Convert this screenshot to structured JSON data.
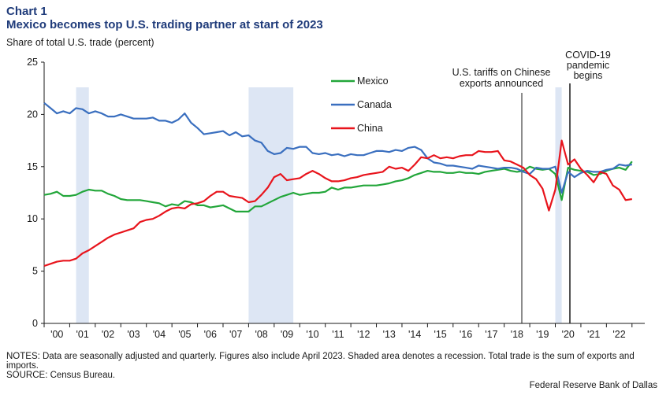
{
  "header": {
    "chart_number": "Chart 1",
    "title": "Mexico becomes top U.S. trading partner at start of 2023"
  },
  "notes": "NOTES: Data are seasonally adjusted and quarterly. Figures also include April 2023. Shaded area denotes a recession. Total trade is the sum of exports and imports.",
  "source": "SOURCE: Census Bureau.",
  "credit": "Federal Reserve Bank of Dallas",
  "colors": {
    "mexico": "#22a63a",
    "canada": "#3a6fbf",
    "china": "#e8141c",
    "recession": "#dde6f4"
  },
  "chart_data": {
    "type": "line",
    "title": "Mexico becomes top U.S. trading partner at start of 2023",
    "ylabel": "Share of total U.S. trade (percent)",
    "xlabel": "",
    "ylim": [
      0,
      25
    ],
    "yticks": [
      0,
      5,
      10,
      15,
      20,
      25
    ],
    "xlim": [
      2000.0,
      2023.5
    ],
    "xtick_labels": [
      "'00",
      "'01",
      "'02",
      "'03",
      "'04",
      "'05",
      "'06",
      "'07",
      "'08",
      "'09",
      "'10",
      "'11",
      "'12",
      "'13",
      "'14",
      "'15",
      "'16",
      "'17",
      "'18",
      "'19",
      "'20",
      "'21",
      "'22"
    ],
    "grid": false,
    "legend": "top-center",
    "recessions": [
      [
        2001.25,
        2001.75
      ],
      [
        2008.0,
        2009.75
      ],
      [
        2020.0,
        2020.25
      ]
    ],
    "annotations": [
      {
        "x": 2018.2,
        "lines": [
          "U.S. tariffs on Chinese",
          "exports announced"
        ]
      },
      {
        "x": 2020.0,
        "lines": [
          "COVID-19",
          "pandemic",
          "begins"
        ]
      }
    ],
    "series": [
      {
        "name": "Mexico",
        "points": [
          [
            2000.0,
            12.3
          ],
          [
            2000.25,
            12.4
          ],
          [
            2000.5,
            12.6
          ],
          [
            2000.75,
            12.2
          ],
          [
            2001.0,
            12.2
          ],
          [
            2001.25,
            12.3
          ],
          [
            2001.5,
            12.6
          ],
          [
            2001.75,
            12.8
          ],
          [
            2002.0,
            12.7
          ],
          [
            2002.25,
            12.7
          ],
          [
            2002.5,
            12.4
          ],
          [
            2002.75,
            12.2
          ],
          [
            2003.0,
            11.9
          ],
          [
            2003.25,
            11.8
          ],
          [
            2003.5,
            11.8
          ],
          [
            2003.75,
            11.8
          ],
          [
            2004.0,
            11.7
          ],
          [
            2004.25,
            11.6
          ],
          [
            2004.5,
            11.5
          ],
          [
            2004.75,
            11.2
          ],
          [
            2005.0,
            11.4
          ],
          [
            2005.25,
            11.3
          ],
          [
            2005.5,
            11.7
          ],
          [
            2005.75,
            11.6
          ],
          [
            2006.0,
            11.3
          ],
          [
            2006.25,
            11.3
          ],
          [
            2006.5,
            11.1
          ],
          [
            2006.75,
            11.2
          ],
          [
            2007.0,
            11.3
          ],
          [
            2007.25,
            11.0
          ],
          [
            2007.5,
            10.7
          ],
          [
            2007.75,
            10.7
          ],
          [
            2008.0,
            10.7
          ],
          [
            2008.25,
            11.2
          ],
          [
            2008.5,
            11.2
          ],
          [
            2008.75,
            11.5
          ],
          [
            2009.0,
            11.8
          ],
          [
            2009.25,
            12.1
          ],
          [
            2009.5,
            12.3
          ],
          [
            2009.75,
            12.5
          ],
          [
            2010.0,
            12.3
          ],
          [
            2010.25,
            12.4
          ],
          [
            2010.5,
            12.5
          ],
          [
            2010.75,
            12.5
          ],
          [
            2011.0,
            12.6
          ],
          [
            2011.25,
            13.0
          ],
          [
            2011.5,
            12.8
          ],
          [
            2011.75,
            13.0
          ],
          [
            2012.0,
            13.0
          ],
          [
            2012.25,
            13.1
          ],
          [
            2012.5,
            13.2
          ],
          [
            2012.75,
            13.2
          ],
          [
            2013.0,
            13.2
          ],
          [
            2013.25,
            13.3
          ],
          [
            2013.5,
            13.4
          ],
          [
            2013.75,
            13.6
          ],
          [
            2014.0,
            13.7
          ],
          [
            2014.25,
            13.9
          ],
          [
            2014.5,
            14.2
          ],
          [
            2014.75,
            14.4
          ],
          [
            2015.0,
            14.6
          ],
          [
            2015.25,
            14.5
          ],
          [
            2015.5,
            14.5
          ],
          [
            2015.75,
            14.4
          ],
          [
            2016.0,
            14.4
          ],
          [
            2016.25,
            14.5
          ],
          [
            2016.5,
            14.4
          ],
          [
            2016.75,
            14.4
          ],
          [
            2017.0,
            14.3
          ],
          [
            2017.25,
            14.5
          ],
          [
            2017.5,
            14.6
          ],
          [
            2017.75,
            14.7
          ],
          [
            2018.0,
            14.8
          ],
          [
            2018.25,
            14.6
          ],
          [
            2018.5,
            14.5
          ],
          [
            2018.75,
            14.6
          ],
          [
            2019.0,
            15.0
          ],
          [
            2019.25,
            14.8
          ],
          [
            2019.5,
            14.7
          ],
          [
            2019.75,
            14.8
          ],
          [
            2020.0,
            14.3
          ],
          [
            2020.25,
            11.8
          ],
          [
            2020.5,
            14.9
          ],
          [
            2020.75,
            14.7
          ],
          [
            2021.0,
            14.6
          ],
          [
            2021.25,
            14.5
          ],
          [
            2021.5,
            14.2
          ],
          [
            2021.75,
            14.3
          ],
          [
            2022.0,
            14.6
          ],
          [
            2022.25,
            14.8
          ],
          [
            2022.5,
            14.9
          ],
          [
            2022.75,
            14.7
          ],
          [
            2023.0,
            15.5
          ]
        ]
      },
      {
        "name": "Canada",
        "points": [
          [
            2000.0,
            21.1
          ],
          [
            2000.25,
            20.6
          ],
          [
            2000.5,
            20.1
          ],
          [
            2000.75,
            20.3
          ],
          [
            2001.0,
            20.1
          ],
          [
            2001.25,
            20.6
          ],
          [
            2001.5,
            20.5
          ],
          [
            2001.75,
            20.1
          ],
          [
            2002.0,
            20.3
          ],
          [
            2002.25,
            20.1
          ],
          [
            2002.5,
            19.8
          ],
          [
            2002.75,
            19.8
          ],
          [
            2003.0,
            20.0
          ],
          [
            2003.25,
            19.8
          ],
          [
            2003.5,
            19.6
          ],
          [
            2003.75,
            19.6
          ],
          [
            2004.0,
            19.6
          ],
          [
            2004.25,
            19.7
          ],
          [
            2004.5,
            19.4
          ],
          [
            2004.75,
            19.4
          ],
          [
            2005.0,
            19.2
          ],
          [
            2005.25,
            19.5
          ],
          [
            2005.5,
            20.1
          ],
          [
            2005.75,
            19.2
          ],
          [
            2006.0,
            18.7
          ],
          [
            2006.25,
            18.1
          ],
          [
            2006.5,
            18.2
          ],
          [
            2006.75,
            18.3
          ],
          [
            2007.0,
            18.4
          ],
          [
            2007.25,
            18.0
          ],
          [
            2007.5,
            18.3
          ],
          [
            2007.75,
            17.9
          ],
          [
            2008.0,
            18.0
          ],
          [
            2008.25,
            17.5
          ],
          [
            2008.5,
            17.3
          ],
          [
            2008.75,
            16.5
          ],
          [
            2009.0,
            16.2
          ],
          [
            2009.25,
            16.3
          ],
          [
            2009.5,
            16.8
          ],
          [
            2009.75,
            16.7
          ],
          [
            2010.0,
            16.9
          ],
          [
            2010.25,
            16.9
          ],
          [
            2010.5,
            16.3
          ],
          [
            2010.75,
            16.2
          ],
          [
            2011.0,
            16.3
          ],
          [
            2011.25,
            16.1
          ],
          [
            2011.5,
            16.2
          ],
          [
            2011.75,
            16.0
          ],
          [
            2012.0,
            16.2
          ],
          [
            2012.25,
            16.1
          ],
          [
            2012.5,
            16.1
          ],
          [
            2012.75,
            16.3
          ],
          [
            2013.0,
            16.5
          ],
          [
            2013.25,
            16.5
          ],
          [
            2013.5,
            16.4
          ],
          [
            2013.75,
            16.6
          ],
          [
            2014.0,
            16.5
          ],
          [
            2014.25,
            16.8
          ],
          [
            2014.5,
            16.9
          ],
          [
            2014.75,
            16.6
          ],
          [
            2015.0,
            15.8
          ],
          [
            2015.25,
            15.4
          ],
          [
            2015.5,
            15.3
          ],
          [
            2015.75,
            15.1
          ],
          [
            2016.0,
            15.1
          ],
          [
            2016.25,
            15.0
          ],
          [
            2016.5,
            14.9
          ],
          [
            2016.75,
            14.8
          ],
          [
            2017.0,
            15.1
          ],
          [
            2017.25,
            15.0
          ],
          [
            2017.5,
            14.9
          ],
          [
            2017.75,
            14.8
          ],
          [
            2018.0,
            14.9
          ],
          [
            2018.25,
            14.9
          ],
          [
            2018.5,
            14.8
          ],
          [
            2018.75,
            14.5
          ],
          [
            2019.0,
            14.3
          ],
          [
            2019.25,
            14.9
          ],
          [
            2019.5,
            14.8
          ],
          [
            2019.75,
            14.8
          ],
          [
            2020.0,
            15.0
          ],
          [
            2020.25,
            12.5
          ],
          [
            2020.5,
            14.5
          ],
          [
            2020.75,
            14.0
          ],
          [
            2021.0,
            14.4
          ],
          [
            2021.25,
            14.6
          ],
          [
            2021.5,
            14.5
          ],
          [
            2021.75,
            14.5
          ],
          [
            2022.0,
            14.7
          ],
          [
            2022.25,
            14.8
          ],
          [
            2022.5,
            15.2
          ],
          [
            2022.75,
            15.1
          ],
          [
            2023.0,
            15.2
          ]
        ]
      },
      {
        "name": "China",
        "points": [
          [
            2000.0,
            5.5
          ],
          [
            2000.25,
            5.7
          ],
          [
            2000.5,
            5.9
          ],
          [
            2000.75,
            6.0
          ],
          [
            2001.0,
            6.0
          ],
          [
            2001.25,
            6.2
          ],
          [
            2001.5,
            6.7
          ],
          [
            2001.75,
            7.0
          ],
          [
            2002.0,
            7.4
          ],
          [
            2002.25,
            7.8
          ],
          [
            2002.5,
            8.2
          ],
          [
            2002.75,
            8.5
          ],
          [
            2003.0,
            8.7
          ],
          [
            2003.25,
            8.9
          ],
          [
            2003.5,
            9.1
          ],
          [
            2003.75,
            9.7
          ],
          [
            2004.0,
            9.9
          ],
          [
            2004.25,
            10.0
          ],
          [
            2004.5,
            10.3
          ],
          [
            2004.75,
            10.7
          ],
          [
            2005.0,
            11.0
          ],
          [
            2005.25,
            11.1
          ],
          [
            2005.5,
            11.0
          ],
          [
            2005.75,
            11.4
          ],
          [
            2006.0,
            11.5
          ],
          [
            2006.25,
            11.7
          ],
          [
            2006.5,
            12.2
          ],
          [
            2006.75,
            12.6
          ],
          [
            2007.0,
            12.6
          ],
          [
            2007.25,
            12.2
          ],
          [
            2007.5,
            12.1
          ],
          [
            2007.75,
            12.0
          ],
          [
            2008.0,
            11.6
          ],
          [
            2008.25,
            11.7
          ],
          [
            2008.5,
            12.3
          ],
          [
            2008.75,
            13.0
          ],
          [
            2009.0,
            14.0
          ],
          [
            2009.25,
            14.3
          ],
          [
            2009.5,
            13.7
          ],
          [
            2009.75,
            13.8
          ],
          [
            2010.0,
            13.9
          ],
          [
            2010.25,
            14.3
          ],
          [
            2010.5,
            14.6
          ],
          [
            2010.75,
            14.3
          ],
          [
            2011.0,
            13.9
          ],
          [
            2011.25,
            13.6
          ],
          [
            2011.5,
            13.6
          ],
          [
            2011.75,
            13.7
          ],
          [
            2012.0,
            13.9
          ],
          [
            2012.25,
            14.0
          ],
          [
            2012.5,
            14.2
          ],
          [
            2012.75,
            14.3
          ],
          [
            2013.0,
            14.4
          ],
          [
            2013.25,
            14.5
          ],
          [
            2013.5,
            15.0
          ],
          [
            2013.75,
            14.8
          ],
          [
            2014.0,
            14.9
          ],
          [
            2014.25,
            14.6
          ],
          [
            2014.5,
            15.2
          ],
          [
            2014.75,
            15.9
          ],
          [
            2015.0,
            15.8
          ],
          [
            2015.25,
            16.1
          ],
          [
            2015.5,
            15.8
          ],
          [
            2015.75,
            15.9
          ],
          [
            2016.0,
            15.8
          ],
          [
            2016.25,
            16.0
          ],
          [
            2016.5,
            16.1
          ],
          [
            2016.75,
            16.1
          ],
          [
            2017.0,
            16.5
          ],
          [
            2017.25,
            16.4
          ],
          [
            2017.5,
            16.4
          ],
          [
            2017.75,
            16.5
          ],
          [
            2018.0,
            15.6
          ],
          [
            2018.25,
            15.5
          ],
          [
            2018.5,
            15.2
          ],
          [
            2018.75,
            14.9
          ],
          [
            2019.0,
            14.2
          ],
          [
            2019.25,
            13.8
          ],
          [
            2019.5,
            12.9
          ],
          [
            2019.75,
            10.8
          ],
          [
            2020.0,
            12.8
          ],
          [
            2020.25,
            17.5
          ],
          [
            2020.5,
            15.2
          ],
          [
            2020.75,
            15.7
          ],
          [
            2021.0,
            14.8
          ],
          [
            2021.25,
            14.2
          ],
          [
            2021.5,
            13.5
          ],
          [
            2021.75,
            14.5
          ],
          [
            2022.0,
            14.3
          ],
          [
            2022.25,
            13.2
          ],
          [
            2022.5,
            12.8
          ],
          [
            2022.75,
            11.8
          ],
          [
            2023.0,
            11.9
          ]
        ]
      }
    ]
  }
}
